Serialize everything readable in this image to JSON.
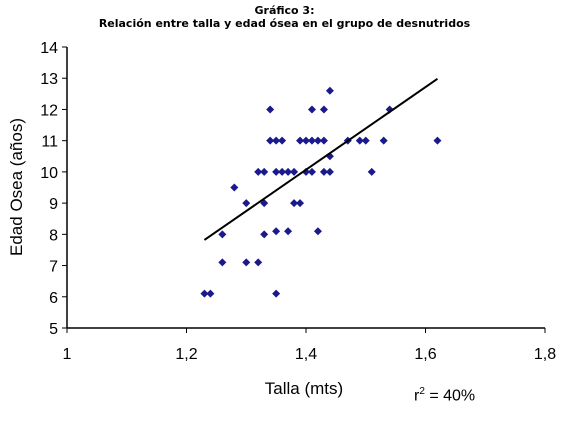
{
  "chart_data": {
    "type": "scatter",
    "title": "Gráfico 3:",
    "subtitle": "Relación entre talla y edad ósea en el grupo de desnutridos",
    "xlabel": "Talla (mts)",
    "ylabel": "Edad Osea (años)",
    "xlim": [
      1,
      1.8
    ],
    "ylim": [
      5,
      14
    ],
    "x_ticks": [
      "1",
      "1,2",
      "1,4",
      "1,6",
      "1,8"
    ],
    "x_tick_values": [
      1,
      1.2,
      1.4,
      1.6,
      1.8
    ],
    "y_ticks": [
      "5",
      "6",
      "7",
      "8",
      "9",
      "10",
      "11",
      "12",
      "13",
      "14"
    ],
    "y_tick_values": [
      5,
      6,
      7,
      8,
      9,
      10,
      11,
      12,
      13,
      14
    ],
    "grid": false,
    "legend": "none",
    "marker_color": "#1a1a8c",
    "series": [
      {
        "values": [
          [
            1.23,
            6.1
          ],
          [
            1.24,
            6.1
          ],
          [
            1.26,
            7.1
          ],
          [
            1.26,
            8.0
          ],
          [
            1.28,
            9.5
          ],
          [
            1.3,
            9.0
          ],
          [
            1.3,
            7.1
          ],
          [
            1.32,
            10.0
          ],
          [
            1.32,
            7.1
          ],
          [
            1.33,
            10.0
          ],
          [
            1.33,
            9.0
          ],
          [
            1.33,
            8.0
          ],
          [
            1.34,
            12.0
          ],
          [
            1.34,
            11.0
          ],
          [
            1.35,
            11.0
          ],
          [
            1.35,
            10.0
          ],
          [
            1.35,
            8.1
          ],
          [
            1.35,
            6.1
          ],
          [
            1.36,
            11.0
          ],
          [
            1.36,
            10.0
          ],
          [
            1.37,
            10.0
          ],
          [
            1.37,
            8.1
          ],
          [
            1.38,
            10.0
          ],
          [
            1.38,
            9.0
          ],
          [
            1.39,
            11.0
          ],
          [
            1.39,
            9.0
          ],
          [
            1.4,
            11.0
          ],
          [
            1.4,
            10.0
          ],
          [
            1.41,
            12.0
          ],
          [
            1.41,
            11.0
          ],
          [
            1.41,
            10.0
          ],
          [
            1.42,
            11.0
          ],
          [
            1.42,
            8.1
          ],
          [
            1.43,
            12.0
          ],
          [
            1.43,
            11.0
          ],
          [
            1.43,
            10.0
          ],
          [
            1.44,
            12.6
          ],
          [
            1.44,
            10.5
          ],
          [
            1.44,
            10.0
          ],
          [
            1.47,
            11.0
          ],
          [
            1.49,
            11.0
          ],
          [
            1.5,
            11.0
          ],
          [
            1.51,
            10.0
          ],
          [
            1.53,
            11.0
          ],
          [
            1.54,
            12.0
          ],
          [
            1.62,
            11.0
          ]
        ]
      }
    ],
    "trendline": {
      "type": "linear",
      "points": [
        [
          1.23,
          7.82
        ],
        [
          1.62,
          12.98
        ]
      ],
      "color": "#000000"
    },
    "annotation": {
      "prefix": "r",
      "superscript": "2",
      "suffix": " = 40%"
    }
  }
}
